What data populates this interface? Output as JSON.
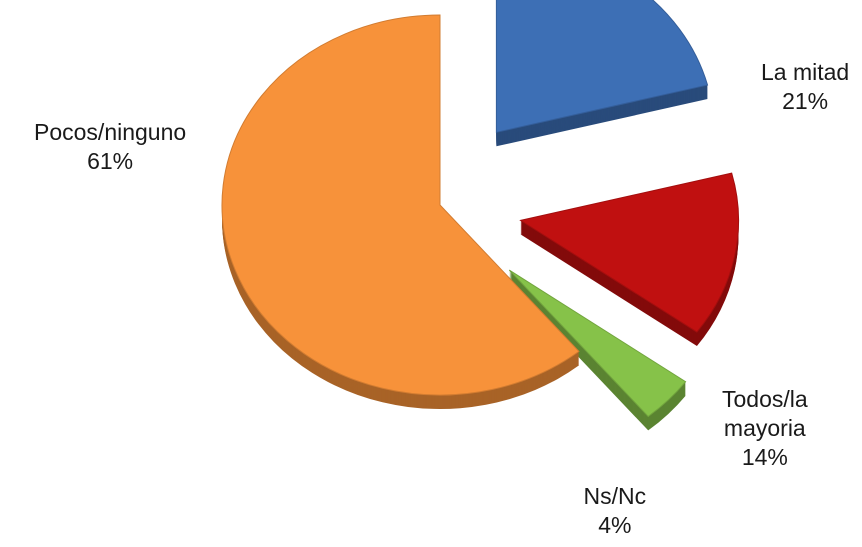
{
  "chart_data": {
    "type": "pie",
    "title": "",
    "categories": [
      "La mitad",
      "Todos/la mayoria",
      "Ns/Nc",
      "Pocos/ninguno"
    ],
    "values": [
      21,
      14,
      4,
      61
    ],
    "value_labels": [
      "21%",
      "14%",
      "4%",
      "61%"
    ],
    "colors": [
      "#3d6fb5",
      "#c01010",
      "#86c249",
      "#f7923a"
    ],
    "exploded": true,
    "style": "3d",
    "legend": "none",
    "label_lines": [
      [
        "La mitad",
        "21%"
      ],
      [
        "Todos/la",
        "mayoria",
        "14%"
      ],
      [
        "Ns/Nc",
        "4%"
      ],
      [
        "Pocos/ninguno",
        "61%"
      ]
    ]
  }
}
